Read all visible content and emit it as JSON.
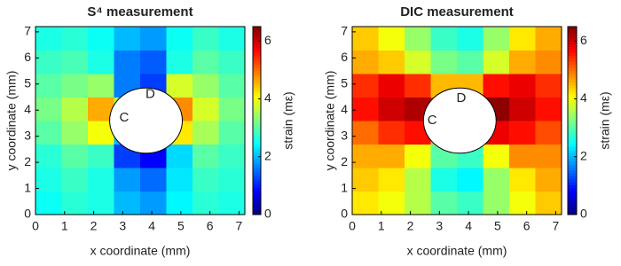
{
  "chart_data": [
    {
      "type": "heatmap",
      "title": "S⁴ measurement",
      "xlabel": "x coordinate (mm)",
      "ylabel": "y coordinate (mm)",
      "colorbar_label": "strain (mε)",
      "colormap": "jet",
      "x": [
        0.45,
        1.35,
        2.25,
        3.15,
        4.05,
        4.95,
        5.85,
        6.75
      ],
      "y": [
        0.45,
        1.35,
        2.25,
        3.15,
        4.05,
        4.95,
        5.85,
        6.75
      ],
      "z": [
        [
          2.5,
          2.7,
          2.6,
          2.0,
          1.8,
          2.4,
          2.7,
          2.6
        ],
        [
          2.6,
          2.8,
          2.6,
          1.8,
          1.5,
          2.3,
          2.8,
          2.7
        ],
        [
          2.7,
          3.0,
          2.8,
          1.2,
          0.8,
          2.2,
          3.0,
          2.8
        ],
        [
          3.0,
          3.4,
          4.0,
          2.0,
          1.5,
          4.2,
          3.5,
          3.0
        ],
        [
          3.2,
          3.6,
          4.6,
          3.5,
          3.5,
          4.8,
          3.8,
          3.2
        ],
        [
          3.0,
          3.2,
          3.4,
          1.6,
          1.2,
          3.8,
          3.4,
          3.0
        ],
        [
          2.8,
          2.9,
          2.6,
          1.6,
          1.4,
          2.6,
          3.0,
          2.8
        ],
        [
          2.6,
          2.7,
          2.5,
          2.0,
          1.8,
          2.5,
          2.8,
          2.6
        ]
      ],
      "xlim": [
        0,
        7.2
      ],
      "ylim": [
        0,
        7.2
      ],
      "xticks": [
        0,
        1,
        2,
        3,
        4,
        5,
        6,
        7
      ],
      "yticks": [
        0,
        1,
        2,
        3,
        4,
        5,
        6,
        7
      ],
      "clim": [
        0,
        6.5
      ],
      "cticks": [
        0,
        2,
        4,
        6
      ],
      "annotations": [
        "C",
        "D"
      ]
    },
    {
      "type": "heatmap",
      "title": "DIC measurement",
      "xlabel": "x coordinate (mm)",
      "ylabel": "y coordinate (mm)",
      "colorbar_label": "strain (mε)",
      "colormap": "jet",
      "x": [
        0.45,
        1.35,
        2.25,
        3.15,
        4.05,
        4.95,
        5.85,
        6.75
      ],
      "y": [
        0.45,
        1.35,
        2.25,
        3.15,
        4.05,
        4.95,
        5.85,
        6.75
      ],
      "z": [
        [
          4.2,
          4.0,
          3.6,
          3.0,
          2.8,
          3.4,
          4.0,
          4.4
        ],
        [
          4.4,
          4.2,
          3.6,
          2.6,
          2.4,
          3.4,
          4.2,
          4.6
        ],
        [
          4.6,
          4.6,
          4.0,
          3.0,
          2.8,
          4.0,
          4.8,
          4.8
        ],
        [
          5.0,
          5.4,
          5.6,
          4.5,
          4.5,
          5.8,
          5.6,
          5.2
        ],
        [
          5.6,
          6.0,
          6.2,
          5.5,
          5.5,
          6.4,
          6.0,
          5.6
        ],
        [
          5.4,
          5.8,
          5.4,
          4.5,
          4.5,
          5.6,
          5.8,
          5.4
        ],
        [
          4.6,
          4.4,
          3.8,
          3.2,
          3.0,
          3.8,
          4.6,
          4.8
        ],
        [
          4.4,
          4.0,
          3.4,
          2.8,
          2.6,
          3.4,
          4.2,
          4.6
        ]
      ],
      "xlim": [
        0,
        7.2
      ],
      "ylim": [
        0,
        7.2
      ],
      "xticks": [
        0,
        1,
        2,
        3,
        4,
        5,
        6,
        7
      ],
      "yticks": [
        0,
        1,
        2,
        3,
        4,
        5,
        6,
        7
      ],
      "clim": [
        0,
        6.5
      ],
      "cticks": [
        0,
        2,
        4,
        6
      ],
      "annotations": [
        "C",
        "D"
      ]
    }
  ]
}
